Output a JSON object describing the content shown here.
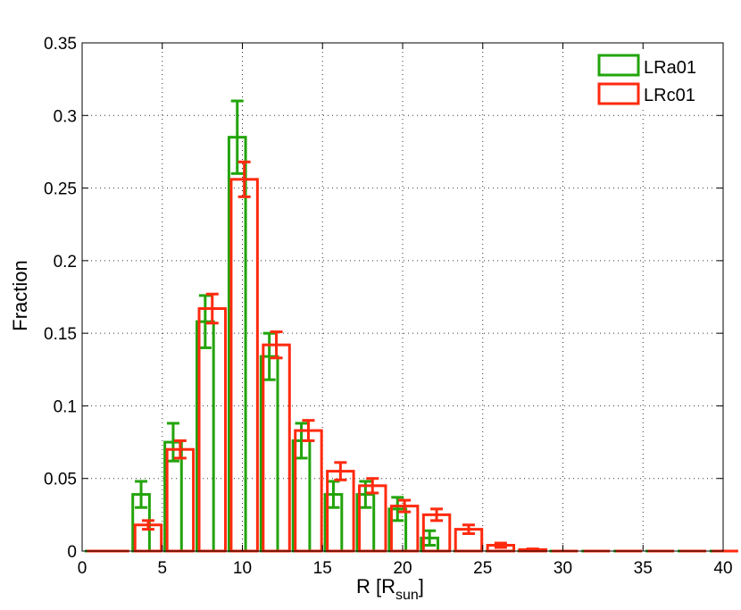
{
  "chart_data": {
    "type": "bar",
    "xlabel": "R [R",
    "xlabel_sub": "sun",
    "xlabel_close": "]",
    "ylabel": "Fraction",
    "xlim": [
      0,
      40
    ],
    "ylim": [
      0,
      0.35
    ],
    "xticks": [
      0,
      5,
      10,
      15,
      20,
      25,
      30,
      35,
      40
    ],
    "yticks": [
      0,
      0.05,
      0.1,
      0.15,
      0.2,
      0.25,
      0.3,
      0.35
    ],
    "yticklabels": [
      "0",
      "0.05",
      "0.1",
      "0.15",
      "0.2",
      "0.25",
      "0.3",
      "0.35"
    ],
    "grid": true,
    "legend_position": "top-right",
    "bin_centers": [
      1,
      2,
      4,
      6,
      8,
      10,
      12,
      14,
      16,
      18,
      20,
      22,
      24,
      26,
      28,
      30,
      32,
      34,
      36,
      38,
      40
    ],
    "series": [
      {
        "name": "LRa01",
        "color": "#22a40a",
        "values": [
          0,
          0,
          0.039,
          0.075,
          0.158,
          0.285,
          0.134,
          0.076,
          0.039,
          0.039,
          0.029,
          0.009,
          0,
          0,
          0,
          0,
          0,
          0,
          0,
          0,
          0
        ],
        "errors": [
          0,
          0,
          0.009,
          0.013,
          0.018,
          0.025,
          0.016,
          0.012,
          0.009,
          0.009,
          0.008,
          0.005,
          0,
          0,
          0,
          0,
          0,
          0,
          0,
          0,
          0
        ]
      },
      {
        "name": "LRc01",
        "color": "#ff2a0e",
        "values": [
          0,
          0,
          0.018,
          0.07,
          0.167,
          0.256,
          0.142,
          0.083,
          0.055,
          0.045,
          0.031,
          0.025,
          0.015,
          0.004,
          0.001,
          0,
          0,
          0,
          0,
          0,
          0
        ],
        "errors": [
          0,
          0,
          0.003,
          0.006,
          0.01,
          0.012,
          0.009,
          0.007,
          0.006,
          0.005,
          0.004,
          0.004,
          0.003,
          0.0015,
          0.0005,
          0,
          0,
          0,
          0,
          0,
          0
        ]
      }
    ]
  }
}
